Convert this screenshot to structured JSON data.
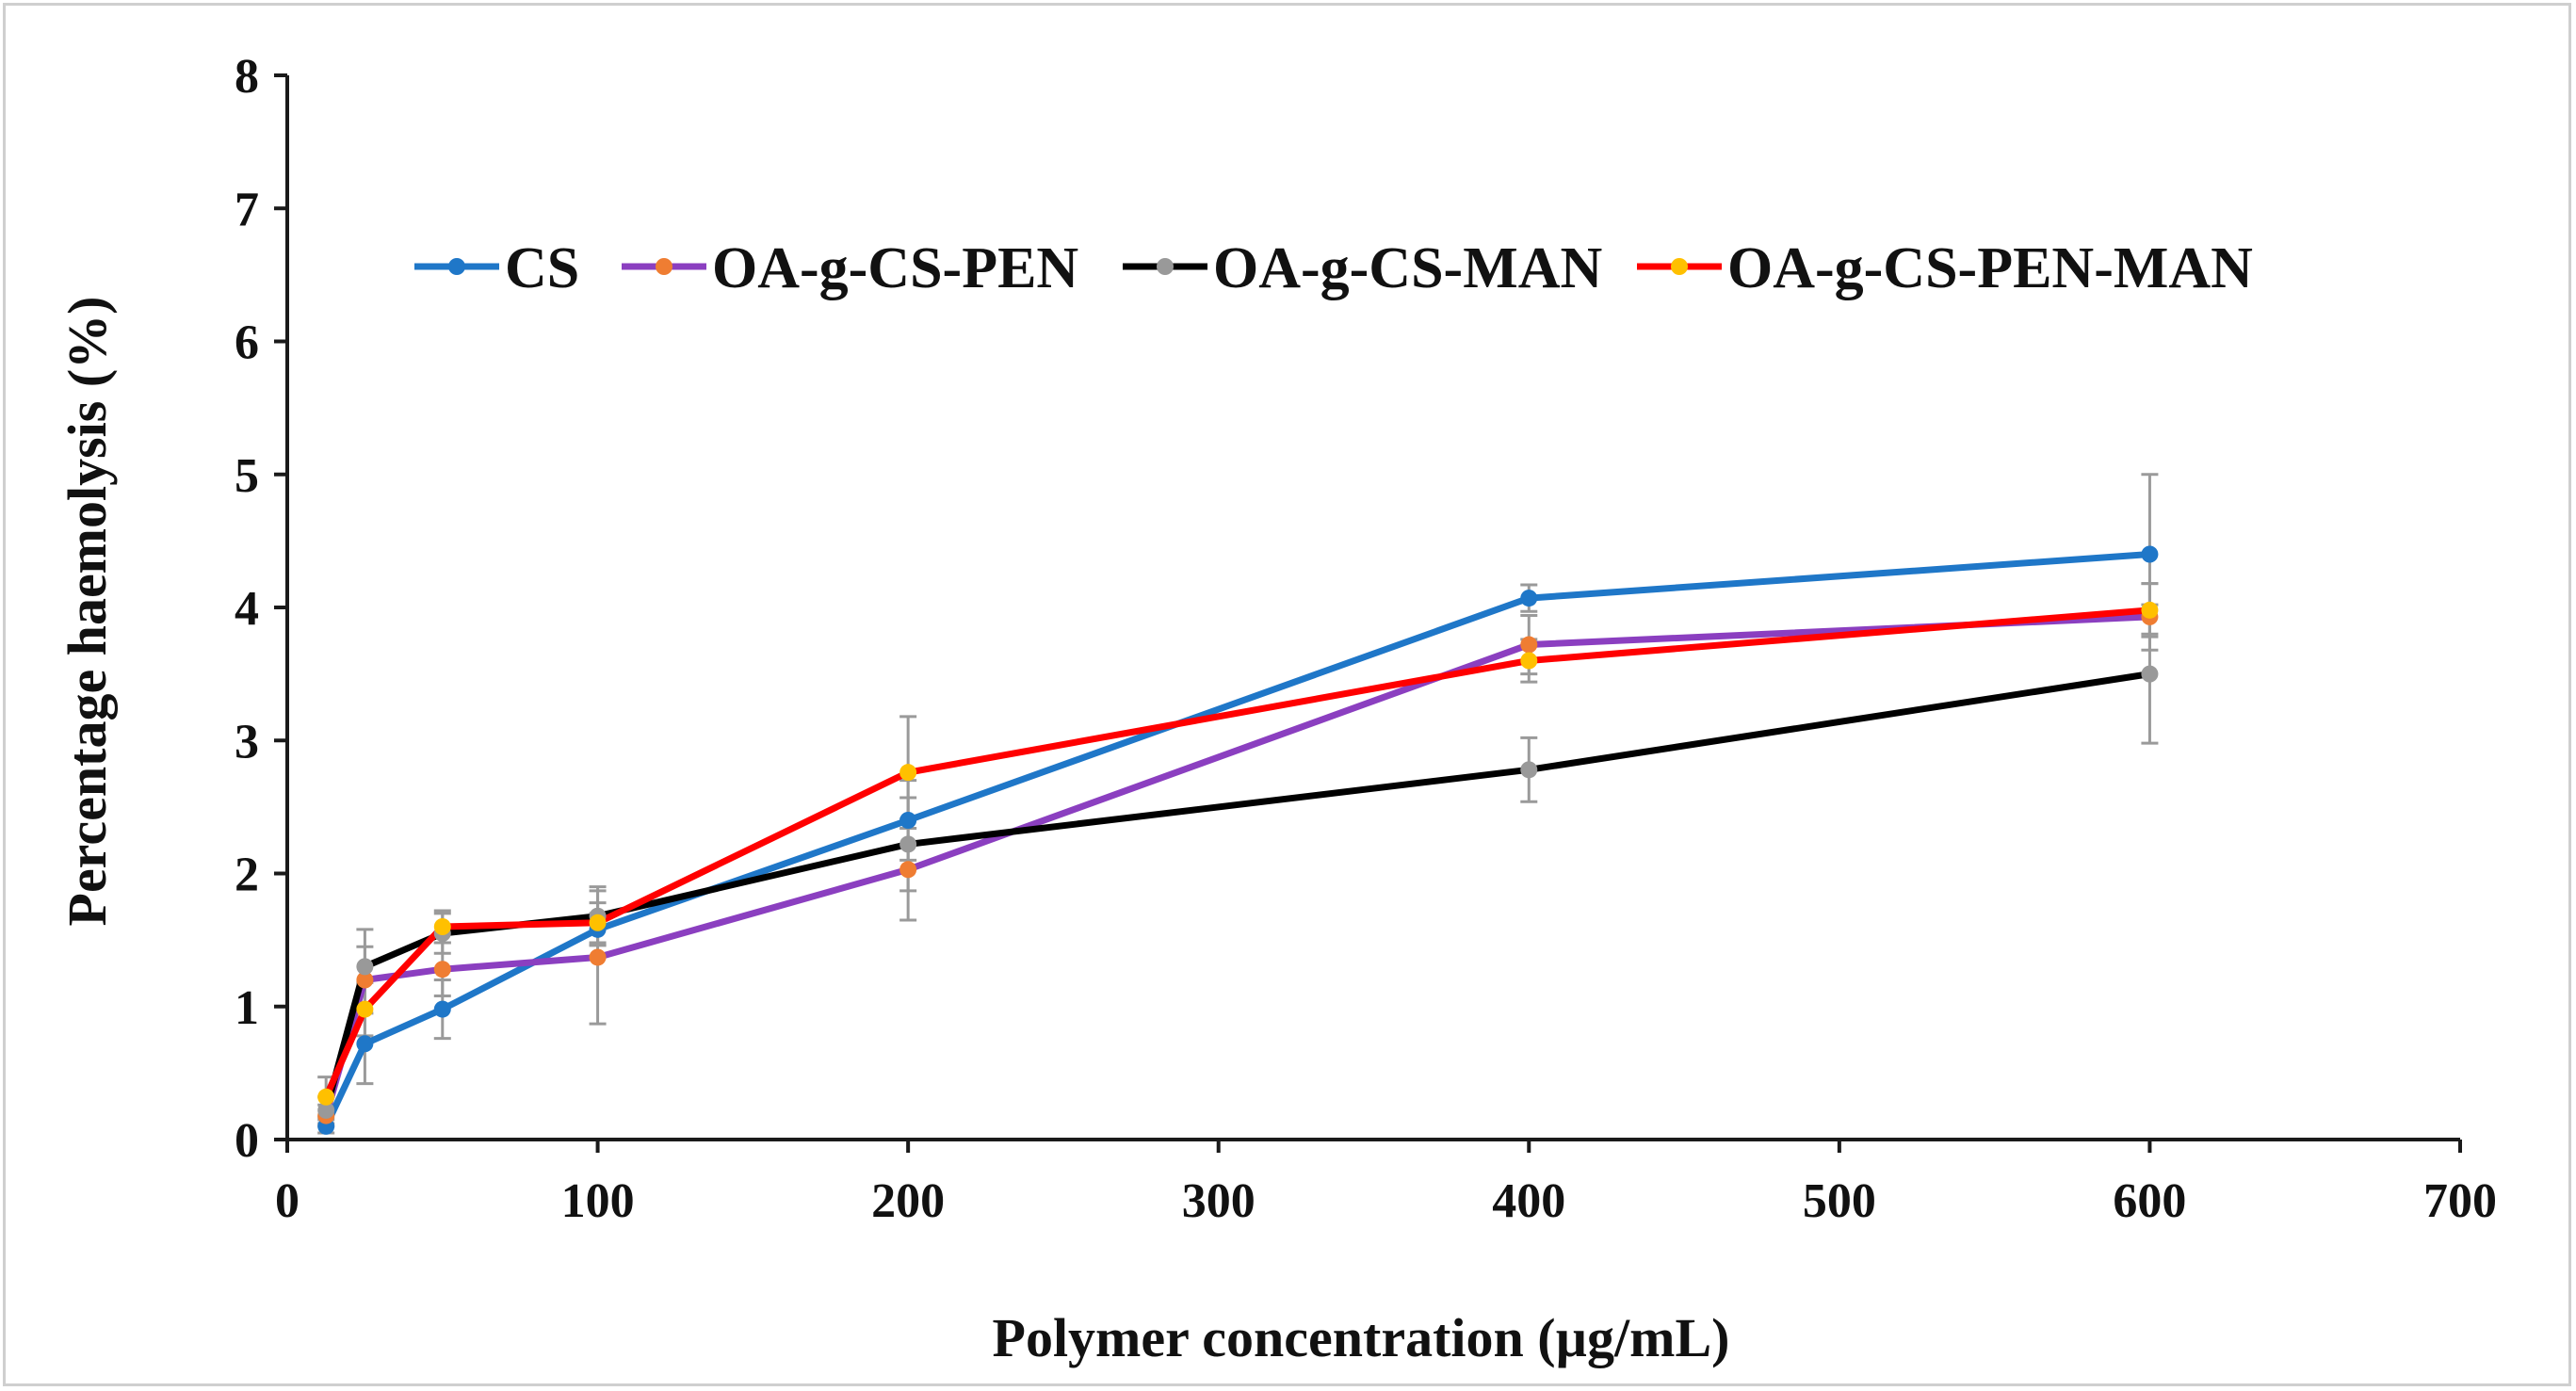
{
  "chart_data": {
    "type": "line",
    "title": "",
    "xlabel": "Polymer  concentration (µg/mL)",
    "ylabel": "Percentage haemolysis  (%)",
    "xlim": [
      0,
      700
    ],
    "ylim": [
      0,
      8
    ],
    "xticks": [
      0,
      100,
      200,
      300,
      400,
      500,
      600,
      700
    ],
    "yticks": [
      0,
      1,
      2,
      3,
      4,
      5,
      6,
      7,
      8
    ],
    "grid": false,
    "legend_position": "top",
    "x": [
      12.5,
      25,
      50,
      100,
      200,
      400,
      600
    ],
    "series": [
      {
        "name": "CS",
        "color": "#1f77c8",
        "marker_color": "#1f77c8",
        "values": [
          0.1,
          0.72,
          0.98,
          1.58,
          2.4,
          4.07,
          4.4
        ],
        "errors": [
          0.05,
          0.3,
          0.22,
          0.12,
          0.3,
          0.1,
          0.6
        ]
      },
      {
        "name": "OA-g-CS-PEN",
        "color": "#8b3fc0",
        "marker_color": "#ef7d32",
        "values": [
          0.18,
          1.2,
          1.28,
          1.37,
          2.03,
          3.72,
          3.93
        ],
        "errors": [
          0.08,
          0.25,
          0.2,
          0.5,
          0.38,
          0.22,
          0.25
        ]
      },
      {
        "name": "OA-g-CS-MAN",
        "color": "#000000",
        "marker_color": "#999999",
        "values": [
          0.22,
          1.3,
          1.55,
          1.68,
          2.22,
          2.78,
          3.5
        ],
        "errors": [
          0.1,
          0.28,
          0.15,
          0.22,
          0.35,
          0.24,
          0.52
        ]
      },
      {
        "name": "OA-g-CS-PEN-MAN",
        "color": "#ff0000",
        "marker_color": "#ffc000",
        "values": [
          0.32,
          0.98,
          1.6,
          1.63,
          2.76,
          3.6,
          3.98
        ],
        "errors": [
          0.15,
          0.2,
          0.12,
          0.15,
          0.42,
          0.16,
          0.2
        ]
      }
    ]
  }
}
